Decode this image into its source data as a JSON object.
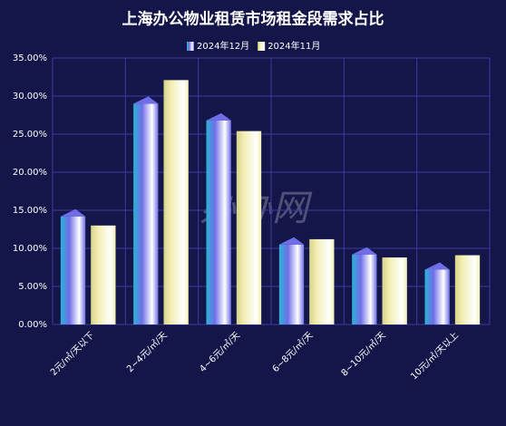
{
  "chart_data": {
    "type": "bar",
    "title": "上海办公物业租赁市场租金段需求占比",
    "watermark": "办办网",
    "categories": [
      "2元/㎡/天以下",
      "2~4元/㎡/天",
      "4~6元/㎡/天",
      "6~8元/㎡/天",
      "8~10元/㎡/天",
      "10元/㎡/天以上"
    ],
    "series": [
      {
        "name": "2024年12月",
        "color": "#6f6ee8",
        "values": [
          14.2,
          29.0,
          26.8,
          10.5,
          9.2,
          7.2
        ]
      },
      {
        "name": "2024年11月",
        "color": "#f2efb4",
        "values": [
          13.0,
          32.1,
          25.4,
          11.2,
          8.8,
          9.1
        ]
      }
    ],
    "ylim": [
      0,
      35
    ],
    "yticks": [
      {
        "value": 0,
        "label": "0.00%"
      },
      {
        "value": 5,
        "label": "5.00%"
      },
      {
        "value": 10,
        "label": "10.00%"
      },
      {
        "value": 15,
        "label": "15.00%"
      },
      {
        "value": 20,
        "label": "20.00%"
      },
      {
        "value": 25,
        "label": "25.00%"
      },
      {
        "value": 30,
        "label": "30.00%"
      },
      {
        "value": 35,
        "label": "35.00%"
      }
    ],
    "grid": true,
    "legend": "top"
  }
}
